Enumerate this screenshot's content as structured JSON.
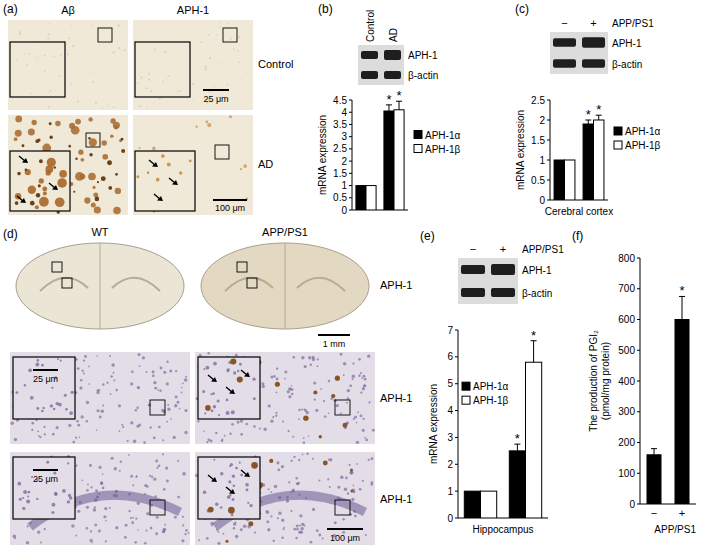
{
  "panels": [
    {
      "label": "(a)",
      "columns": [
        "Aβ",
        "APH-1"
      ],
      "rows": [
        "Control",
        "AD"
      ],
      "scale_bars": [
        "25 μm",
        "100 μm"
      ]
    },
    {
      "label": "(d)",
      "columns": [
        "WT",
        "APP/PS1"
      ],
      "rows": [
        "APH-1",
        "APH-1",
        "APH-1"
      ],
      "scale_bars": [
        "1 mm",
        "25 μm",
        "25 μm",
        "100 μm"
      ]
    }
  ],
  "chart_data": [
    {
      "panel": "(b)",
      "type": "bar",
      "blot": {
        "lanes": [
          "Control",
          "AD"
        ],
        "bands": [
          "APH-1",
          "β-actin"
        ]
      },
      "categories": [
        null,
        null
      ],
      "series": [
        {
          "name": "APH-1α",
          "color": "#000000",
          "values": [
            1,
            4.05
          ],
          "errors": [
            null,
            0.25
          ],
          "annotations": [
            null,
            "*"
          ]
        },
        {
          "name": "APH-1β",
          "color": "#ffffff",
          "values": [
            1,
            4.1
          ],
          "errors": [
            null,
            0.35
          ],
          "annotations": [
            null,
            "*"
          ]
        }
      ],
      "y_label": "mRNA expression",
      "ylim": [
        0,
        4.5
      ],
      "yticks": [
        0,
        0.5,
        1,
        1.5,
        2,
        2.5,
        3,
        3.5,
        4,
        4.5
      ],
      "legend": "right"
    },
    {
      "panel": "(c)",
      "type": "bar",
      "blot": {
        "header": "APP/PS1",
        "lanes": [
          "−",
          "+"
        ],
        "bands": [
          "APH-1",
          "β-actin"
        ]
      },
      "categories": [
        null,
        null
      ],
      "series": [
        {
          "name": "APH-1α",
          "color": "#000000",
          "values": [
            1,
            1.9
          ],
          "errors": [
            null,
            0.1
          ],
          "annotations": [
            null,
            "*"
          ]
        },
        {
          "name": "APH-1β",
          "color": "#ffffff",
          "values": [
            1,
            2.0
          ],
          "errors": [
            null,
            0.12
          ],
          "annotations": [
            null,
            "*"
          ]
        }
      ],
      "y_label": "mRNA expression",
      "x_label": "Cerebral cortex",
      "ylim": [
        0,
        2.5
      ],
      "yticks": [
        0,
        0.5,
        1,
        1.5,
        2,
        2.5
      ],
      "legend": "right"
    },
    {
      "panel": "(e)",
      "type": "bar",
      "blot": {
        "header": "APP/PS1",
        "lanes": [
          "−",
          "+"
        ],
        "bands": [
          "APH-1",
          "β-actin"
        ]
      },
      "categories": [
        null,
        null
      ],
      "series": [
        {
          "name": "APH-1α",
          "color": "#000000",
          "values": [
            1,
            2.5
          ],
          "errors": [
            null,
            0.25
          ],
          "annotations": [
            null,
            "*"
          ]
        },
        {
          "name": "APH-1β",
          "color": "#ffffff",
          "values": [
            1,
            5.8
          ],
          "errors": [
            null,
            0.8
          ],
          "annotations": [
            null,
            "*"
          ]
        }
      ],
      "y_label": "mRNA expression",
      "x_label": "Hippocampus",
      "ylim": [
        0,
        7
      ],
      "yticks": [
        0,
        1,
        2,
        3,
        4,
        5,
        6,
        7
      ],
      "legend": "left"
    },
    {
      "panel": "(f)",
      "type": "bar",
      "categories": [
        "−",
        "+"
      ],
      "x_label": "APP/PS1",
      "color": "#000000",
      "values": [
        160,
        600
      ],
      "errors": [
        20,
        75
      ],
      "annotations": [
        null,
        "*"
      ],
      "y_label": [
        "The production of PGI₂",
        "(pmol/mg protein)"
      ],
      "ylim": [
        0,
        800
      ],
      "yticks": [
        0,
        100,
        200,
        300,
        400,
        500,
        600,
        700,
        800
      ]
    }
  ]
}
